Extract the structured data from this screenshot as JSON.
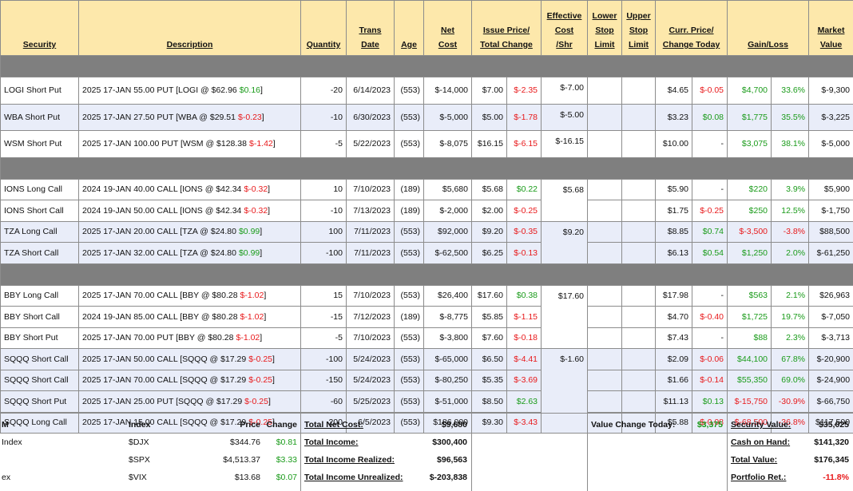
{
  "headers": [
    {
      "lines": [
        "Security"
      ]
    },
    {
      "lines": [
        "Description"
      ]
    },
    {
      "lines": [
        "Quantity"
      ]
    },
    {
      "lines": [
        "Trans",
        "Date"
      ]
    },
    {
      "lines": [
        "Age"
      ]
    },
    {
      "lines": [
        "Net",
        "Cost"
      ]
    },
    {
      "lines": [
        "Issue Price/",
        "Total Change"
      ]
    },
    {
      "lines": [
        "Effective",
        "Cost",
        "/Shr"
      ]
    },
    {
      "lines": [
        "Lower",
        "Stop",
        "Limit"
      ]
    },
    {
      "lines": [
        "Upper",
        "Stop",
        "Limit"
      ]
    },
    {
      "lines": [
        "Curr. Price/",
        "Change Today"
      ]
    },
    {
      "lines": [
        "Gain/Loss"
      ]
    },
    {
      "lines": [
        "Market",
        "Value"
      ]
    }
  ],
  "sections": [
    {
      "rows": [
        {
          "shaded": false,
          "security": "LOGI Short Put",
          "description": [
            "2025 17-JAN 55.00 PUT [LOGI @ $62.96",
            "$0.16",
            "]"
          ],
          "quantity": "-20",
          "trans_date": "6/14/2023",
          "age": "(553)",
          "net_cost": "$-14,000",
          "issue_price": "$7.00",
          "total_change": "$-2.35",
          "effective_cost": "$-7.00",
          "curr_price": "$4.65",
          "change_today": "$-0.05",
          "gain": "$4,700",
          "gain_pct": "33.6%",
          "market_value": "$-9,300"
        },
        {
          "shaded": true,
          "security": "WBA Short Put",
          "description": [
            "2025 17-JAN 27.50 PUT [WBA @ $29.51",
            "$-0.23",
            "]"
          ],
          "quantity": "-10",
          "trans_date": "6/30/2023",
          "age": "(553)",
          "net_cost": "$-5,000",
          "issue_price": "$5.00",
          "total_change": "$-1.78",
          "effective_cost": "$-5.00",
          "curr_price": "$3.23",
          "change_today": "$0.08",
          "gain": "$1,775",
          "gain_pct": "35.5%",
          "market_value": "$-3,225"
        },
        {
          "shaded": false,
          "security": "WSM Short Put",
          "description": [
            "2025 17-JAN 100.00 PUT [WSM @ $128.38",
            "$-1.42",
            "]"
          ],
          "quantity": "-5",
          "trans_date": "5/22/2023",
          "age": "(553)",
          "net_cost": "$-8,075",
          "issue_price": "$16.15",
          "total_change": "$-6.15",
          "effective_cost": "$-16.15",
          "curr_price": "$10.00",
          "change_today": "-",
          "gain": "$3,075",
          "gain_pct": "38.1%",
          "market_value": "$-5,000"
        }
      ]
    },
    {
      "rows": [
        {
          "shaded": false,
          "security": "IONS Long Call",
          "description": [
            "2024 19-JAN 40.00 CALL [IONS @ $42.34",
            "$-0.32",
            "]"
          ],
          "quantity": "10",
          "trans_date": "7/10/2023",
          "age": "(189)",
          "net_cost": "$5,680",
          "issue_price": "$5.68",
          "total_change": "$0.22",
          "effective_cost": "$5.68",
          "curr_price": "$5.90",
          "change_today": "-",
          "gain": "$220",
          "gain_pct": "3.9%",
          "market_value": "$5,900"
        },
        {
          "shaded": false,
          "security": "IONS Short Call",
          "description": [
            "2024 19-JAN 50.00 CALL [IONS @ $42.34",
            "$-0.32",
            "]"
          ],
          "quantity": "-10",
          "trans_date": "7/13/2023",
          "age": "(189)",
          "net_cost": "$-2,000",
          "issue_price": "$2.00",
          "total_change": "$-0.25",
          "effective_cost": null,
          "curr_price": "$1.75",
          "change_today": "$-0.25",
          "gain": "$250",
          "gain_pct": "12.5%",
          "market_value": "$-1,750"
        },
        {
          "shaded": true,
          "security": "TZA Long Call",
          "description": [
            "2025 17-JAN 20.00 CALL [TZA @ $24.80",
            "$0.99",
            "]"
          ],
          "quantity": "100",
          "trans_date": "7/11/2023",
          "age": "(553)",
          "net_cost": "$92,000",
          "issue_price": "$9.20",
          "total_change": "$-0.35",
          "effective_cost": "$9.20",
          "curr_price": "$8.85",
          "change_today": "$0.74",
          "gain": "$-3,500",
          "gain_pct": "-3.8%",
          "market_value": "$88,500"
        },
        {
          "shaded": true,
          "security": "TZA Short Call",
          "description": [
            "2025 17-JAN 32.00 CALL [TZA @ $24.80",
            "$0.99",
            "]"
          ],
          "quantity": "-100",
          "trans_date": "7/11/2023",
          "age": "(553)",
          "net_cost": "$-62,500",
          "issue_price": "$6.25",
          "total_change": "$-0.13",
          "effective_cost": null,
          "curr_price": "$6.13",
          "change_today": "$0.54",
          "gain": "$1,250",
          "gain_pct": "2.0%",
          "market_value": "$-61,250"
        }
      ]
    },
    {
      "rows": [
        {
          "shaded": false,
          "security": "BBY Long Call",
          "description": [
            "2025 17-JAN 70.00 CALL [BBY @ $80.28",
            "$-1.02",
            "]"
          ],
          "quantity": "15",
          "trans_date": "7/10/2023",
          "age": "(553)",
          "net_cost": "$26,400",
          "issue_price": "$17.60",
          "total_change": "$0.38",
          "effective_cost": "$17.60",
          "curr_price": "$17.98",
          "change_today": "-",
          "gain": "$563",
          "gain_pct": "2.1%",
          "market_value": "$26,963"
        },
        {
          "shaded": false,
          "security": "BBY Short Call",
          "description": [
            "2024 19-JAN 85.00 CALL [BBY @ $80.28",
            "$-1.02",
            "]"
          ],
          "quantity": "-15",
          "trans_date": "7/12/2023",
          "age": "(189)",
          "net_cost": "$-8,775",
          "issue_price": "$5.85",
          "total_change": "$-1.15",
          "effective_cost": null,
          "curr_price": "$4.70",
          "change_today": "$-0.40",
          "gain": "$1,725",
          "gain_pct": "19.7%",
          "market_value": "$-7,050"
        },
        {
          "shaded": false,
          "security": "BBY Short Put",
          "description": [
            "2025 17-JAN 70.00 PUT [BBY @ $80.28",
            "$-1.02",
            "]"
          ],
          "quantity": "-5",
          "trans_date": "7/10/2023",
          "age": "(553)",
          "net_cost": "$-3,800",
          "issue_price": "$7.60",
          "total_change": "$-0.18",
          "effective_cost": null,
          "curr_price": "$7.43",
          "change_today": "-",
          "gain": "$88",
          "gain_pct": "2.3%",
          "market_value": "$-3,713"
        },
        {
          "shaded": true,
          "security": "SQQQ Short Call",
          "description": [
            "2025 17-JAN 50.00 CALL [SQQQ @ $17.29",
            "$-0.25",
            "]"
          ],
          "quantity": "-100",
          "trans_date": "5/24/2023",
          "age": "(553)",
          "net_cost": "$-65,000",
          "issue_price": "$6.50",
          "total_change": "$-4.41",
          "effective_cost": "$-1.60",
          "curr_price": "$2.09",
          "change_today": "$-0.06",
          "gain": "$44,100",
          "gain_pct": "67.8%",
          "market_value": "$-20,900"
        },
        {
          "shaded": true,
          "security": "SQQQ Short Call",
          "description": [
            "2025 17-JAN 70.00 CALL [SQQQ @ $17.29",
            "$-0.25",
            "]"
          ],
          "quantity": "-150",
          "trans_date": "5/24/2023",
          "age": "(553)",
          "net_cost": "$-80,250",
          "issue_price": "$5.35",
          "total_change": "$-3.69",
          "effective_cost": null,
          "curr_price": "$1.66",
          "change_today": "$-0.14",
          "gain": "$55,350",
          "gain_pct": "69.0%",
          "market_value": "$-24,900"
        },
        {
          "shaded": true,
          "security": "SQQQ Short Put",
          "description": [
            "2025 17-JAN 25.00 PUT [SQQQ @ $17.29",
            "$-0.25",
            "]"
          ],
          "quantity": "-60",
          "trans_date": "5/25/2023",
          "age": "(553)",
          "net_cost": "$-51,000",
          "issue_price": "$8.50",
          "total_change": "$2.63",
          "effective_cost": null,
          "curr_price": "$11.13",
          "change_today": "$0.13",
          "gain": "$-15,750",
          "gain_pct": "-30.9%",
          "market_value": "$-66,750"
        },
        {
          "shaded": true,
          "security": "SQQQ Long Call",
          "description": [
            "2025 17-JAN 15.00 CALL [SQQQ @ $17.29",
            "$-0.25",
            "]"
          ],
          "quantity": "200",
          "trans_date": "6/5/2023",
          "age": "(553)",
          "net_cost": "$186,000",
          "issue_price": "$9.30",
          "total_change": "$-3.43",
          "effective_cost": null,
          "curr_price": "$5.88",
          "change_today": "$-0.08",
          "gain": "$-68,500",
          "gain_pct": "-36.8%",
          "market_value": "$117,500"
        }
      ]
    }
  ],
  "indices": {
    "header": [
      "M",
      "Index",
      "Price",
      "Change"
    ],
    "rows": [
      [
        "Index",
        "$DJX",
        "$344.76",
        "$0.81"
      ],
      [
        null,
        "$SPX",
        "$4,513.37",
        "$3.33"
      ],
      [
        "ex",
        "$VIX",
        "$13.68",
        "$0.07"
      ]
    ]
  },
  "totals": [
    {
      "label": "Total Net Cost:",
      "value": "$9,680"
    },
    {
      "label": "Total Income:",
      "value": "$300,400"
    },
    {
      "label": "Total Income Realized:",
      "value": "$96,563"
    },
    {
      "label": "Total Income Unrealized:",
      "value": "$-203,838"
    }
  ],
  "value_change_today": {
    "label": "Value Change Today:",
    "value": "$3,375"
  },
  "summary": [
    {
      "label": "Security Value:",
      "value": "$35,025"
    },
    {
      "label": "Cash on Hand:",
      "value": "$141,320"
    },
    {
      "label": "Total Value:",
      "value": "$176,345"
    },
    {
      "label": "Portfolio Ret.:",
      "value": "-11.8%"
    }
  ]
}
